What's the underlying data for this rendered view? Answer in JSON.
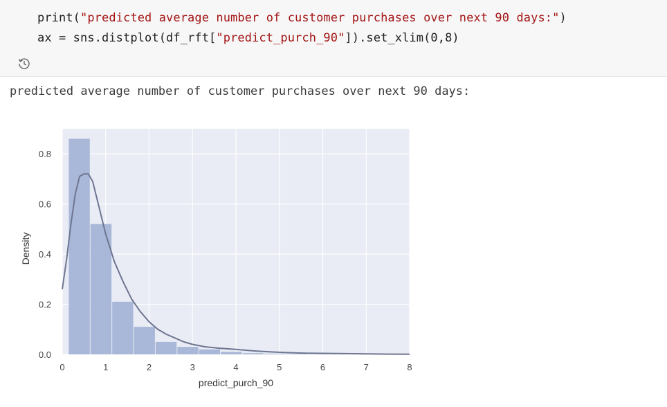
{
  "code_cell": {
    "line1_prefix": "print(",
    "line1_string": "\"predicted average number of customer purchases over next 90 days:\"",
    "line1_suffix": ")",
    "line2_prefix": "ax = sns.distplot(df_rft[",
    "line2_string": "\"predict_purch_90\"",
    "line2_suffix": "]).set_xlim(0,8)",
    "history_icon": "history-icon"
  },
  "output": {
    "text": "predicted average number of customer purchases over next 90 days:"
  },
  "chart_data": {
    "type": "bar",
    "xlabel": "predict_purch_90",
    "ylabel": "Density",
    "xlim": [
      0,
      8
    ],
    "ylim": [
      0,
      0.9
    ],
    "xticks": [
      0,
      1,
      2,
      3,
      4,
      5,
      6,
      7,
      8
    ],
    "yticks": [
      0.0,
      0.2,
      0.4,
      0.6,
      0.8
    ],
    "ytick_labels": [
      "0.0",
      "0.2",
      "0.4",
      "0.6",
      "0.8"
    ],
    "grid": true,
    "histogram": {
      "bin_edges": [
        0.15,
        0.65,
        1.15,
        1.65,
        2.15,
        2.65,
        3.15,
        3.65,
        4.15,
        4.65,
        5.15,
        5.65,
        6.15,
        6.65,
        7.15,
        7.65,
        8.0
      ],
      "values": [
        0.86,
        0.52,
        0.21,
        0.11,
        0.05,
        0.03,
        0.02,
        0.01,
        0.005,
        0.003,
        0.002,
        0.001,
        0.001,
        0.001,
        0.0005,
        0.0005
      ],
      "color": "#a9b8d8"
    },
    "kde": {
      "x": [
        0.0,
        0.1,
        0.2,
        0.3,
        0.4,
        0.5,
        0.6,
        0.7,
        0.8,
        0.9,
        1.0,
        1.2,
        1.4,
        1.6,
        1.8,
        2.0,
        2.2,
        2.4,
        2.6,
        2.8,
        3.0,
        3.3,
        3.6,
        4.0,
        4.4,
        4.8,
        5.2,
        5.6,
        6.0,
        6.5,
        7.0,
        7.5,
        8.0
      ],
      "y": [
        0.26,
        0.38,
        0.52,
        0.64,
        0.71,
        0.72,
        0.72,
        0.69,
        0.62,
        0.55,
        0.48,
        0.37,
        0.29,
        0.22,
        0.17,
        0.13,
        0.1,
        0.08,
        0.065,
        0.05,
        0.04,
        0.03,
        0.025,
        0.02,
        0.014,
        0.01,
        0.007,
        0.005,
        0.004,
        0.003,
        0.002,
        0.001,
        0.0008
      ],
      "color": "#6e7591"
    },
    "background": "#e9ecf4"
  }
}
